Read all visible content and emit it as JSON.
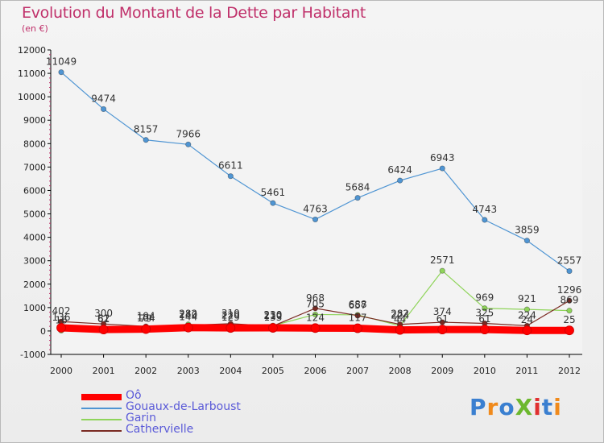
{
  "title": "Evolution du Montant de la Dette par Habitant",
  "subtitle": "(en €)",
  "logo": {
    "text": "ProXiti",
    "colors": [
      "#3a7fd0",
      "#f08a1c",
      "#3a7fd0",
      "#6cb82e",
      "#e03030",
      "#3a7fd0",
      "#f08a1c"
    ]
  },
  "chart_data": {
    "type": "line",
    "x": [
      2000,
      2001,
      2002,
      2003,
      2004,
      2005,
      2006,
      2007,
      2008,
      2009,
      2010,
      2011,
      2012
    ],
    "ylim": [
      -1000,
      12000
    ],
    "yticks": [
      -1000,
      0,
      1000,
      2000,
      3000,
      4000,
      5000,
      6000,
      7000,
      8000,
      9000,
      10000,
      11000,
      12000
    ],
    "grid": false,
    "legend_position": "bottom-left",
    "series": [
      {
        "name": "Oô",
        "color": "#ff0000",
        "values": [
          136,
          61,
          79,
          144,
          129,
          133,
          124,
          117,
          44,
          61,
          61,
          24,
          25
        ],
        "labels": [
          "136",
          "61",
          "79",
          "144",
          "129",
          "133",
          "124",
          "117",
          "44",
          "61",
          "61",
          "24",
          "25"
        ]
      },
      {
        "name": "Gouaux-de-Larboust",
        "color": "#4f95d3",
        "values": [
          11049,
          9474,
          8157,
          7966,
          6611,
          5461,
          4763,
          5684,
          6424,
          6943,
          4743,
          3859,
          2557
        ],
        "labels": [
          "11049",
          "9474",
          "8157",
          "7966",
          "6611",
          "5461",
          "4763",
          "5684",
          "6424",
          "6943",
          "4743",
          "3859",
          "2557"
        ]
      },
      {
        "name": "Garin",
        "color": "#8fd45a",
        "values": [
          16,
          82,
          104,
          282,
          220,
          230,
          705,
          688,
          224,
          2571,
          969,
          921,
          869
        ],
        "labels": [
          "16",
          "82",
          "104",
          "282",
          "220",
          "230",
          "705",
          "688",
          "224",
          "2571",
          "969",
          "921",
          "869"
        ]
      },
      {
        "name": "Cathervielle",
        "color": "#7a2a22",
        "values": [
          402,
          300,
          194,
          240,
          310,
          210,
          968,
          657,
          282,
          374,
          325,
          224,
          1296
        ],
        "labels": [
          "402",
          "300",
          "194",
          "240",
          "310",
          "210",
          "968",
          "657",
          "282",
          "374",
          "325",
          "224",
          "1296"
        ]
      }
    ]
  }
}
